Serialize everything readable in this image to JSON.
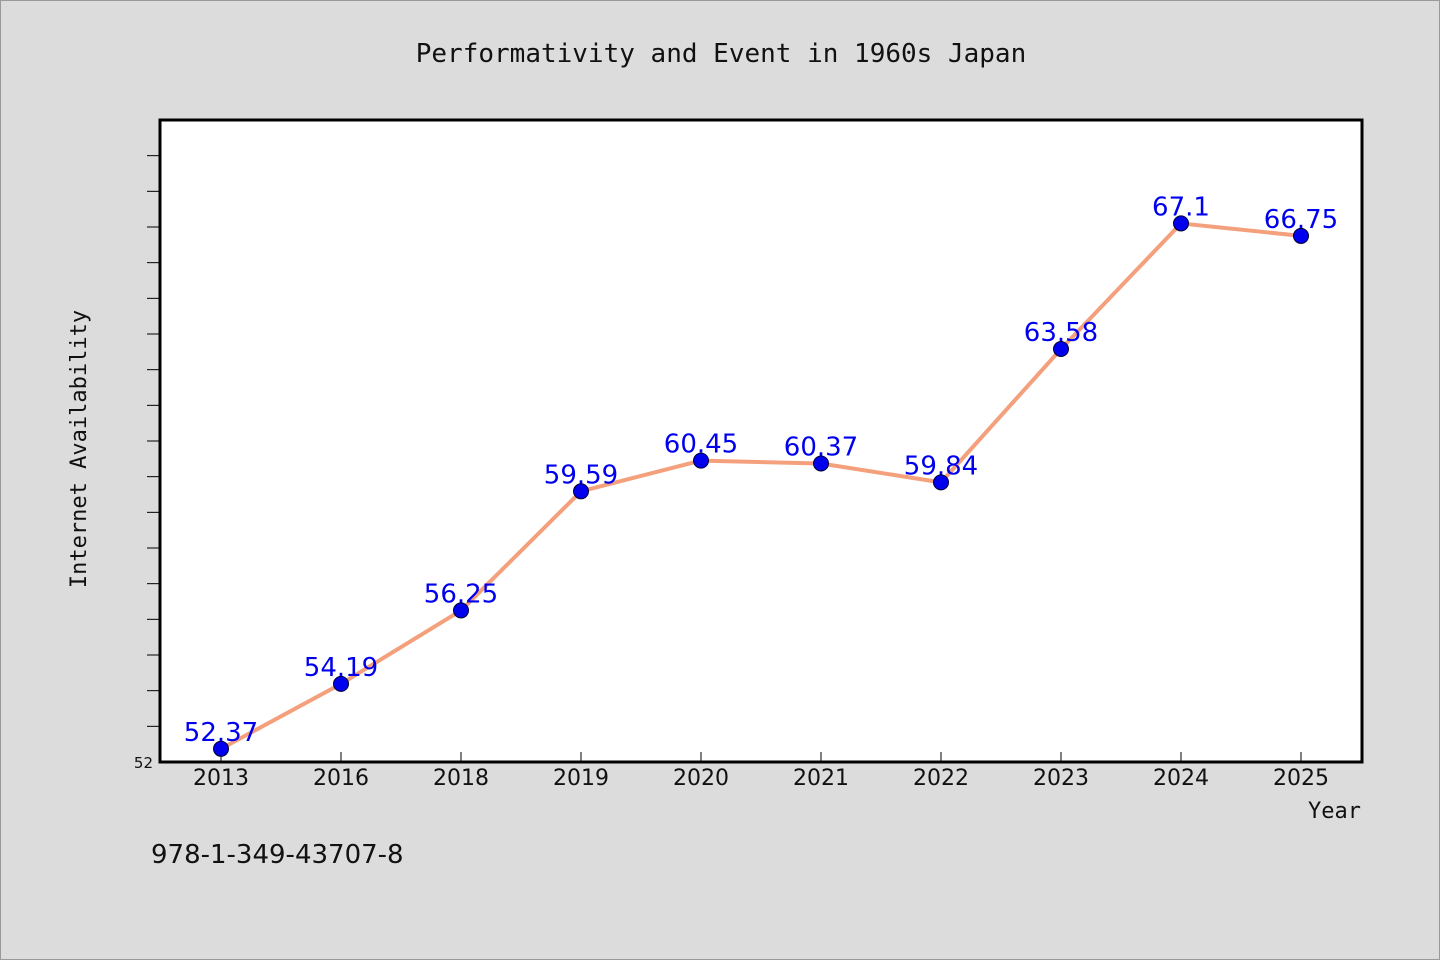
{
  "chart_data": {
    "type": "line",
    "title": "Performativity and Event in 1960s Japan",
    "xlabel": "Year",
    "ylabel": "Internet Availability",
    "categories": [
      "2013",
      "2016",
      "2018",
      "2019",
      "2020",
      "2021",
      "2022",
      "2023",
      "2024",
      "2025"
    ],
    "series": [
      {
        "values": [
          52.37,
          54.19,
          56.25,
          59.59,
          60.45,
          60.37,
          59.84,
          63.58,
          67.1,
          66.75
        ],
        "data_labels": [
          "52.37",
          "54.19",
          "56.25",
          "59.59",
          "60.45",
          "60.37",
          "59.84",
          "63.58",
          "67.1",
          "66.75"
        ]
      }
    ],
    "ylim": [
      52,
      70
    ],
    "ytick_labels": [
      "52"
    ],
    "grid": false,
    "line_color": "#f4a07c",
    "marker_color": "#0000ee",
    "label_color": "#0000ee"
  },
  "annotation": "978-1-349-43707-8"
}
